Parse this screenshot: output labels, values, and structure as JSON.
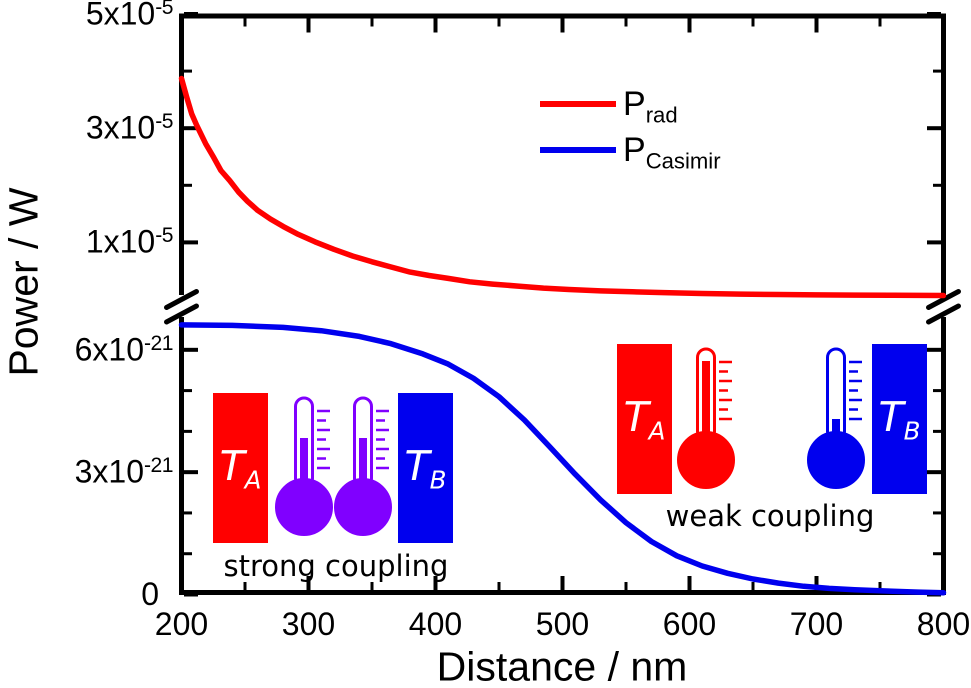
{
  "colors": {
    "red": "#ff0000",
    "blue": "#0000ee",
    "violet": "#8000ff",
    "axis": "#000000",
    "background": "#ffffff"
  },
  "chart_data": {
    "type": "line",
    "title": "",
    "xlabel": "Distance / nm",
    "ylabel": "Power / W",
    "grid": false,
    "x_axis": {
      "min": 200,
      "max": 800,
      "major_ticks": [
        200,
        300,
        400,
        500,
        600,
        700,
        800
      ],
      "minor_ticks": [
        250,
        350,
        450,
        550,
        650,
        750
      ],
      "tick_labels": [
        "200",
        "300",
        "400",
        "500",
        "600",
        "700",
        "800"
      ]
    },
    "y_axis": {
      "broken": true,
      "top_section": {
        "unit": "1e-5 W",
        "range": [
          0,
          5
        ],
        "major_ticks": [
          5,
          3,
          1
        ],
        "minor_ticks": [
          4,
          2
        ],
        "tick_labels": [
          {
            "mantissa": "5x10",
            "exp": "-5",
            "value": 5
          },
          {
            "mantissa": "3x10",
            "exp": "-5",
            "value": 3
          },
          {
            "mantissa": "1x10",
            "exp": "-5",
            "value": 1
          }
        ]
      },
      "bottom_section": {
        "unit": "1e-21 W",
        "range": [
          0,
          7
        ],
        "major_ticks": [
          6,
          3,
          0
        ],
        "minor_ticks": [
          5,
          4,
          2,
          1
        ],
        "tick_labels": [
          {
            "mantissa": "6x10",
            "exp": "-21",
            "value": 6
          },
          {
            "mantissa": "3x10",
            "exp": "-21",
            "value": 3
          },
          {
            "mantissa": "0",
            "exp": "",
            "value": 0
          }
        ]
      }
    },
    "series": [
      {
        "name": "P_rad",
        "color_key": "red",
        "section": "top",
        "unit": "1e-5 W",
        "points": [
          [
            200,
            3.87
          ],
          [
            204,
            3.55
          ],
          [
            208,
            3.25
          ],
          [
            212,
            3.05
          ],
          [
            219,
            2.73
          ],
          [
            225,
            2.5
          ],
          [
            231,
            2.26
          ],
          [
            238,
            2.08
          ],
          [
            245,
            1.88
          ],
          [
            252,
            1.72
          ],
          [
            260,
            1.56
          ],
          [
            270,
            1.41
          ],
          [
            280,
            1.28
          ],
          [
            292,
            1.14
          ],
          [
            305,
            1.01
          ],
          [
            320,
            0.88
          ],
          [
            335,
            0.76
          ],
          [
            350,
            0.66
          ],
          [
            365,
            0.57
          ],
          [
            380,
            0.48
          ],
          [
            395,
            0.42
          ],
          [
            410,
            0.37
          ],
          [
            427,
            0.31
          ],
          [
            445,
            0.27
          ],
          [
            465,
            0.235
          ],
          [
            485,
            0.2
          ],
          [
            505,
            0.175
          ],
          [
            530,
            0.15
          ],
          [
            555,
            0.135
          ],
          [
            580,
            0.12
          ],
          [
            610,
            0.105
          ],
          [
            640,
            0.095
          ],
          [
            670,
            0.087
          ],
          [
            700,
            0.081
          ],
          [
            730,
            0.077
          ],
          [
            760,
            0.073
          ],
          [
            800,
            0.07
          ]
        ]
      },
      {
        "name": "P_Casimir",
        "color_key": "blue",
        "section": "bottom",
        "unit": "1e-21 W",
        "points": [
          [
            200,
            6.61
          ],
          [
            240,
            6.6
          ],
          [
            280,
            6.55
          ],
          [
            310,
            6.47
          ],
          [
            340,
            6.33
          ],
          [
            365,
            6.15
          ],
          [
            390,
            5.9
          ],
          [
            410,
            5.65
          ],
          [
            430,
            5.3
          ],
          [
            450,
            4.85
          ],
          [
            470,
            4.28
          ],
          [
            490,
            3.62
          ],
          [
            510,
            2.95
          ],
          [
            530,
            2.32
          ],
          [
            550,
            1.76
          ],
          [
            570,
            1.3
          ],
          [
            590,
            0.95
          ],
          [
            610,
            0.7
          ],
          [
            630,
            0.52
          ],
          [
            650,
            0.38
          ],
          [
            670,
            0.28
          ],
          [
            690,
            0.2
          ],
          [
            710,
            0.15
          ],
          [
            730,
            0.115
          ],
          [
            755,
            0.085
          ],
          [
            780,
            0.06
          ],
          [
            800,
            0.045
          ]
        ]
      }
    ],
    "legend": {
      "position": "upper-center",
      "items": [
        {
          "main": "P",
          "sub": "rad",
          "color_key": "red"
        },
        {
          "main": "P",
          "sub": "Casimir",
          "color_key": "blue"
        }
      ]
    }
  },
  "annotations": {
    "strong": {
      "caption": "strong coupling",
      "hot_block": {
        "main": "T",
        "sub": "A"
      },
      "cold_block": {
        "main": "T",
        "sub": "B"
      },
      "thermometers": [
        {
          "color_key": "violet",
          "level": "medium"
        },
        {
          "color_key": "violet",
          "level": "medium"
        }
      ]
    },
    "weak": {
      "caption": "weak coupling",
      "hot_block": {
        "main": "T",
        "sub": "A"
      },
      "cold_block": {
        "main": "T",
        "sub": "B"
      },
      "thermometers": [
        {
          "color_key": "red",
          "level": "high"
        },
        {
          "color_key": "blue",
          "level": "low"
        }
      ]
    }
  }
}
